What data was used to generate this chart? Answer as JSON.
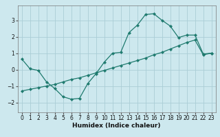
{
  "xlabel": "Humidex (Indice chaleur)",
  "bg_color": "#cde8ee",
  "grid_color": "#aacdd6",
  "line_color": "#1e7a6e",
  "line1_x": [
    0,
    1,
    2,
    3,
    4,
    5,
    6,
    7,
    8,
    9,
    10,
    11,
    12,
    13,
    14,
    15,
    16,
    17,
    18,
    19,
    20,
    21,
    22,
    23
  ],
  "line1_y": [
    0.65,
    0.05,
    -0.05,
    -0.75,
    -1.15,
    -1.65,
    -1.8,
    -1.75,
    -0.85,
    -0.25,
    0.45,
    1.0,
    1.05,
    2.25,
    2.7,
    3.35,
    3.4,
    3.0,
    2.65,
    1.95,
    2.1,
    2.1,
    0.95,
    1.0
  ],
  "line2_x": [
    0,
    1,
    2,
    3,
    4,
    5,
    6,
    7,
    8,
    9,
    10,
    11,
    12,
    13,
    14,
    15,
    16,
    17,
    18,
    19,
    20,
    21,
    22,
    23
  ],
  "line2_y": [
    -1.3,
    -1.2,
    -1.1,
    -1.0,
    -0.9,
    -0.75,
    -0.6,
    -0.5,
    -0.35,
    -0.2,
    -0.05,
    0.1,
    0.25,
    0.4,
    0.55,
    0.7,
    0.9,
    1.05,
    1.25,
    1.45,
    1.65,
    1.8,
    0.9,
    1.0
  ],
  "xlim": [
    -0.5,
    23.5
  ],
  "ylim": [
    -2.6,
    3.9
  ],
  "yticks": [
    -2,
    -1,
    0,
    1,
    2,
    3
  ],
  "xticks": [
    0,
    1,
    2,
    3,
    4,
    5,
    6,
    7,
    8,
    9,
    10,
    11,
    12,
    13,
    14,
    15,
    16,
    17,
    18,
    19,
    20,
    21,
    22,
    23
  ],
  "tick_fontsize": 5.5,
  "xlabel_fontsize": 6.5
}
